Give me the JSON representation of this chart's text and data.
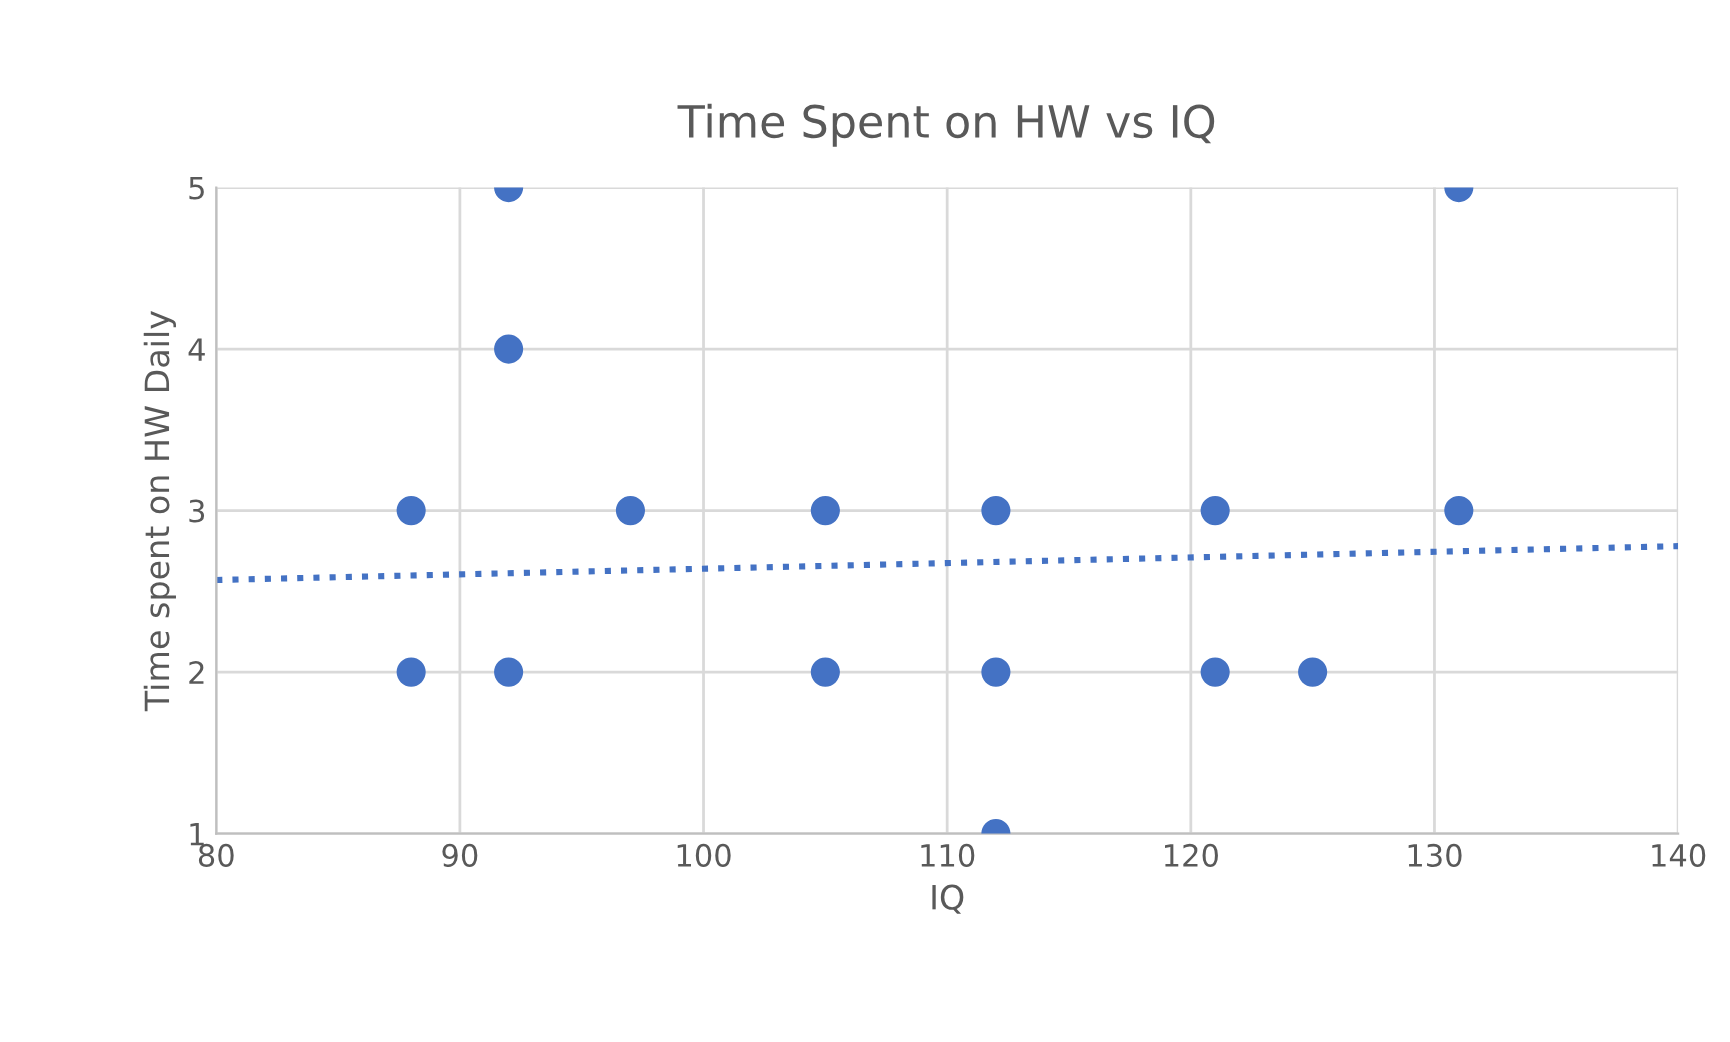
{
  "chart_data": {
    "type": "scatter",
    "title": "Time Spent on HW vs IQ",
    "xlabel": "IQ",
    "ylabel": "Time spent on HW Daily",
    "xlim": [
      80,
      140
    ],
    "xticks": [
      80,
      90,
      100,
      110,
      120,
      130,
      140
    ],
    "ylim": [
      1,
      5
    ],
    "yticks": [
      1,
      2,
      3,
      4,
      5
    ],
    "grid": true,
    "series": [
      {
        "marker": "circle",
        "color": "#4472c4",
        "x": [
          92,
          131,
          92,
          88,
          97,
          105,
          112,
          121,
          131,
          88,
          92,
          105,
          112,
          121,
          125,
          112
        ],
        "values": [
          5,
          5,
          4,
          3,
          3,
          3,
          3,
          3,
          3,
          2,
          2,
          2,
          2,
          2,
          2,
          1
        ]
      },
      {
        "type": "line",
        "marker": "none",
        "color": "#4472c4",
        "line_style": "dotted",
        "x": [
          80,
          140
        ],
        "values": [
          2.57,
          2.78
        ]
      }
    ]
  }
}
